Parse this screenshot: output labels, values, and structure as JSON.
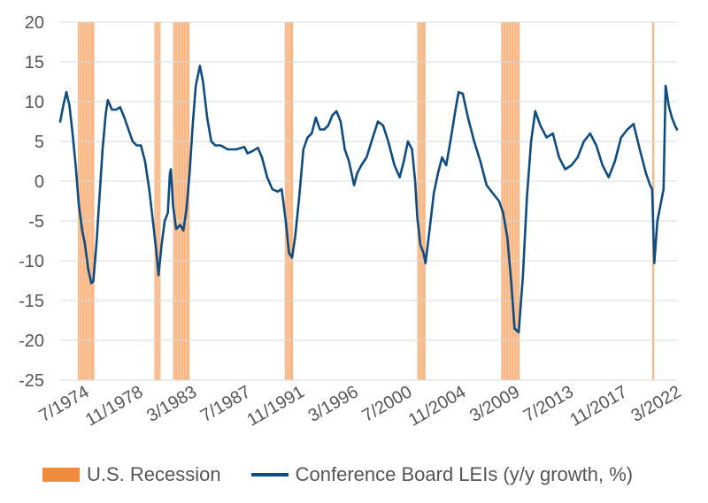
{
  "colors": {
    "line": "#0f4c81",
    "recession": "#f5a05e",
    "recession_swatch": "#f08a3c",
    "grid": "#d9d9d9",
    "text": "#555555"
  },
  "legend": {
    "recession_label": "U.S. Recession",
    "line_label": "Conference Board LEIs (y/y growth, %)"
  },
  "chart_data": {
    "type": "line",
    "title": "",
    "xlabel": "",
    "ylabel": "",
    "ylim": [
      -25,
      20
    ],
    "yticks": [
      20,
      15,
      10,
      5,
      0,
      -5,
      -10,
      -15,
      -20,
      -25
    ],
    "xlim": [
      "1972-07",
      "2022-03"
    ],
    "xtick_labels": [
      "7/1974",
      "11/1978",
      "3/1983",
      "7/1987",
      "11/1991",
      "3/1996",
      "7/2000",
      "11/2004",
      "3/2009",
      "7/2013",
      "11/2017",
      "3/2022"
    ],
    "xtick_dates": [
      "1974-07",
      "1978-11",
      "1983-03",
      "1987-07",
      "1991-11",
      "1996-03",
      "2000-07",
      "2004-11",
      "2009-03",
      "2013-07",
      "2017-11",
      "2022-03"
    ],
    "grid": true,
    "legend_position": "bottom",
    "recessions": [
      {
        "name": "U.S. Recession",
        "start": "1973-12",
        "end": "1975-03"
      },
      {
        "name": "U.S. Recession",
        "start": "1980-02",
        "end": "1980-07"
      },
      {
        "name": "U.S. Recession",
        "start": "1981-08",
        "end": "1982-11"
      },
      {
        "name": "U.S. Recession",
        "start": "1990-08",
        "end": "1991-03"
      },
      {
        "name": "U.S. Recession",
        "start": "2001-04",
        "end": "2001-11"
      },
      {
        "name": "U.S. Recession",
        "start": "2008-01",
        "end": "2009-06"
      },
      {
        "name": "U.S. Recession",
        "start": "2020-03",
        "end": "2020-04"
      }
    ],
    "series": [
      {
        "name": "Conference Board LEIs (y/y growth, %)",
        "points": [
          [
            "1972-07",
            7.5
          ],
          [
            "1972-10",
            9.5
          ],
          [
            "1973-01",
            11.2
          ],
          [
            "1973-04",
            9.5
          ],
          [
            "1973-07",
            6.0
          ],
          [
            "1973-10",
            2.0
          ],
          [
            "1974-01",
            -3.0
          ],
          [
            "1974-04",
            -6.0
          ],
          [
            "1974-07",
            -8.0
          ],
          [
            "1974-10",
            -11.0
          ],
          [
            "1975-01",
            -12.8
          ],
          [
            "1975-03",
            -12.6
          ],
          [
            "1975-06",
            -8.0
          ],
          [
            "1975-09",
            -2.0
          ],
          [
            "1975-12",
            4.0
          ],
          [
            "1976-03",
            8.5
          ],
          [
            "1976-05",
            10.2
          ],
          [
            "1976-09",
            9.0
          ],
          [
            "1977-01",
            9.0
          ],
          [
            "1977-05",
            9.3
          ],
          [
            "1977-09",
            8.0
          ],
          [
            "1978-01",
            6.5
          ],
          [
            "1978-05",
            5.0
          ],
          [
            "1978-09",
            4.5
          ],
          [
            "1979-01",
            4.5
          ],
          [
            "1979-05",
            2.5
          ],
          [
            "1979-09",
            -1.0
          ],
          [
            "1980-01",
            -5.5
          ],
          [
            "1980-04",
            -9.0
          ],
          [
            "1980-06",
            -11.8
          ],
          [
            "1980-09",
            -8.0
          ],
          [
            "1980-12",
            -5.0
          ],
          [
            "1981-03",
            -4.0
          ],
          [
            "1981-05",
            1.0
          ],
          [
            "1981-06",
            1.5
          ],
          [
            "1981-08",
            -3.0
          ],
          [
            "1981-11",
            -6.0
          ],
          [
            "1982-03",
            -5.5
          ],
          [
            "1982-06",
            -6.2
          ],
          [
            "1982-09",
            -3.5
          ],
          [
            "1982-12",
            1.0
          ],
          [
            "1983-03",
            7.0
          ],
          [
            "1983-06",
            12.0
          ],
          [
            "1983-10",
            14.5
          ],
          [
            "1984-01",
            12.5
          ],
          [
            "1984-05",
            8.0
          ],
          [
            "1984-09",
            5.0
          ],
          [
            "1985-01",
            4.5
          ],
          [
            "1985-06",
            4.5
          ],
          [
            "1986-01",
            4.0
          ],
          [
            "1986-09",
            4.0
          ],
          [
            "1987-05",
            4.3
          ],
          [
            "1987-08",
            3.5
          ],
          [
            "1988-01",
            3.8
          ],
          [
            "1988-06",
            4.2
          ],
          [
            "1988-10",
            3.0
          ],
          [
            "1989-03",
            0.5
          ],
          [
            "1989-08",
            -1.0
          ],
          [
            "1990-01",
            -1.3
          ],
          [
            "1990-05",
            -1.0
          ],
          [
            "1990-09",
            -5.0
          ],
          [
            "1990-12",
            -9.0
          ],
          [
            "1991-03",
            -9.6
          ],
          [
            "1991-06",
            -7.0
          ],
          [
            "1991-10",
            -2.0
          ],
          [
            "1992-02",
            4.0
          ],
          [
            "1992-06",
            5.5
          ],
          [
            "1992-10",
            6.0
          ],
          [
            "1993-02",
            8.0
          ],
          [
            "1993-06",
            6.5
          ],
          [
            "1993-10",
            6.5
          ],
          [
            "1994-02",
            7.0
          ],
          [
            "1994-06",
            8.3
          ],
          [
            "1994-10",
            8.8
          ],
          [
            "1995-02",
            7.5
          ],
          [
            "1995-06",
            4.0
          ],
          [
            "1995-10",
            2.5
          ],
          [
            "1996-03",
            -0.5
          ],
          [
            "1996-06",
            1.0
          ],
          [
            "1996-10",
            2.0
          ],
          [
            "1997-03",
            3.0
          ],
          [
            "1997-09",
            5.5
          ],
          [
            "1998-02",
            7.5
          ],
          [
            "1998-07",
            7.0
          ],
          [
            "1998-12",
            5.0
          ],
          [
            "1999-06",
            2.0
          ],
          [
            "1999-11",
            0.5
          ],
          [
            "2000-03",
            2.5
          ],
          [
            "2000-07",
            5.0
          ],
          [
            "2000-11",
            4.0
          ],
          [
            "2001-02",
            0.0
          ],
          [
            "2001-04",
            -4.5
          ],
          [
            "2001-07",
            -8.0
          ],
          [
            "2001-10",
            -9.0
          ],
          [
            "2001-12",
            -10.3
          ],
          [
            "2002-04",
            -6.0
          ],
          [
            "2002-08",
            -1.5
          ],
          [
            "2002-12",
            1.0
          ],
          [
            "2003-04",
            3.0
          ],
          [
            "2003-08",
            2.0
          ],
          [
            "2003-12",
            5.0
          ],
          [
            "2004-05",
            9.0
          ],
          [
            "2004-08",
            11.2
          ],
          [
            "2004-12",
            11.0
          ],
          [
            "2005-05",
            8.0
          ],
          [
            "2005-11",
            5.0
          ],
          [
            "2006-05",
            2.5
          ],
          [
            "2006-11",
            -0.5
          ],
          [
            "2007-05",
            -1.5
          ],
          [
            "2007-11",
            -2.5
          ],
          [
            "2008-03",
            -4.0
          ],
          [
            "2008-07",
            -7.0
          ],
          [
            "2008-11",
            -13.0
          ],
          [
            "2009-02",
            -18.5
          ],
          [
            "2009-06",
            -19.0
          ],
          [
            "2009-10",
            -12.0
          ],
          [
            "2010-02",
            -2.0
          ],
          [
            "2010-06",
            5.0
          ],
          [
            "2010-10",
            8.8
          ],
          [
            "2011-03",
            7.0
          ],
          [
            "2011-09",
            5.5
          ],
          [
            "2012-03",
            6.0
          ],
          [
            "2012-09",
            3.0
          ],
          [
            "2013-03",
            1.5
          ],
          [
            "2013-09",
            2.0
          ],
          [
            "2014-03",
            3.0
          ],
          [
            "2014-09",
            5.0
          ],
          [
            "2015-03",
            6.0
          ],
          [
            "2015-09",
            4.5
          ],
          [
            "2016-03",
            2.0
          ],
          [
            "2016-09",
            0.5
          ],
          [
            "2017-03",
            2.5
          ],
          [
            "2017-09",
            5.5
          ],
          [
            "2018-03",
            6.5
          ],
          [
            "2018-09",
            7.2
          ],
          [
            "2019-03",
            4.0
          ],
          [
            "2019-09",
            1.0
          ],
          [
            "2020-01",
            -0.5
          ],
          [
            "2020-03",
            -1.0
          ],
          [
            "2020-05",
            -10.3
          ],
          [
            "2020-08",
            -5.0
          ],
          [
            "2020-11",
            -3.0
          ],
          [
            "2021-02",
            -1.0
          ],
          [
            "2021-04",
            12.0
          ],
          [
            "2021-07",
            9.5
          ],
          [
            "2021-10",
            8.0
          ],
          [
            "2022-01",
            7.0
          ],
          [
            "2022-03",
            6.5
          ]
        ]
      }
    ]
  }
}
